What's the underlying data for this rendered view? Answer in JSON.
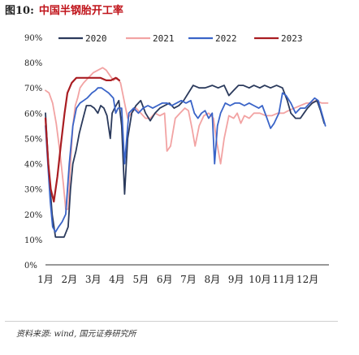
{
  "figure": {
    "label": "图10:",
    "title": "中国半钢胎开工率"
  },
  "source_note": "资料来源: wind, 国元证券研究所",
  "chart_data": {
    "type": "line",
    "title": "中国半钢胎开工率",
    "xlabel": "",
    "ylabel": "",
    "x_range": [
      1,
      12.9
    ],
    "ylim": [
      0,
      90
    ],
    "yticks": [
      "0%",
      "10%",
      "20%",
      "30%",
      "40%",
      "50%",
      "60%",
      "70%",
      "80%",
      "90%"
    ],
    "ytick_values": [
      0,
      10,
      20,
      30,
      40,
      50,
      60,
      70,
      80,
      90
    ],
    "xticks": [
      "1月",
      "2月",
      "3月",
      "4月",
      "5月",
      "6月",
      "7月",
      "8月",
      "9月",
      "10月",
      "11月",
      "12月"
    ],
    "xtick_values": [
      1,
      2,
      3,
      4,
      5,
      6,
      7,
      8,
      9,
      10,
      11,
      12
    ],
    "grid": false,
    "legend_position": "top",
    "series": [
      {
        "name": "2020",
        "color": "#2b3a5c",
        "points": [
          [
            1.0,
            60
          ],
          [
            1.12,
            40
          ],
          [
            1.28,
            20
          ],
          [
            1.42,
            11
          ],
          [
            1.6,
            11
          ],
          [
            1.78,
            11
          ],
          [
            1.95,
            15
          ],
          [
            2.05,
            30
          ],
          [
            2.15,
            40
          ],
          [
            2.28,
            45
          ],
          [
            2.42,
            52
          ],
          [
            2.58,
            58
          ],
          [
            2.72,
            63
          ],
          [
            2.9,
            63
          ],
          [
            3.05,
            62
          ],
          [
            3.2,
            60
          ],
          [
            3.32,
            63
          ],
          [
            3.45,
            62
          ],
          [
            3.58,
            59
          ],
          [
            3.72,
            50
          ],
          [
            3.8,
            60
          ],
          [
            3.9,
            62
          ],
          [
            4.08,
            65
          ],
          [
            4.2,
            55
          ],
          [
            4.32,
            28
          ],
          [
            4.45,
            50
          ],
          [
            4.62,
            60
          ],
          [
            4.8,
            63
          ],
          [
            5.0,
            65
          ],
          [
            5.2,
            60
          ],
          [
            5.4,
            57
          ],
          [
            5.6,
            60
          ],
          [
            5.8,
            62
          ],
          [
            6.0,
            63
          ],
          [
            6.2,
            64
          ],
          [
            6.4,
            62
          ],
          [
            6.6,
            63
          ],
          [
            6.8,
            65
          ],
          [
            7.0,
            68
          ],
          [
            7.2,
            71
          ],
          [
            7.45,
            70
          ],
          [
            7.7,
            70
          ],
          [
            8.0,
            71
          ],
          [
            8.25,
            70
          ],
          [
            8.5,
            71
          ],
          [
            8.7,
            67
          ],
          [
            8.9,
            69
          ],
          [
            9.1,
            71
          ],
          [
            9.3,
            71
          ],
          [
            9.55,
            70
          ],
          [
            9.75,
            71
          ],
          [
            10.0,
            70
          ],
          [
            10.2,
            71
          ],
          [
            10.45,
            70
          ],
          [
            10.7,
            71
          ],
          [
            10.95,
            70
          ],
          [
            11.15,
            65
          ],
          [
            11.3,
            60
          ],
          [
            11.5,
            58
          ],
          [
            11.7,
            58
          ],
          [
            11.85,
            60
          ],
          [
            12.0,
            62
          ],
          [
            12.2,
            64
          ],
          [
            12.4,
            65
          ],
          [
            12.55,
            61
          ],
          [
            12.7,
            56
          ]
        ]
      },
      {
        "name": "2021",
        "color": "#f2a3a3",
        "points": [
          [
            1.0,
            69
          ],
          [
            1.15,
            68
          ],
          [
            1.3,
            64
          ],
          [
            1.45,
            56
          ],
          [
            1.6,
            45
          ],
          [
            1.75,
            32
          ],
          [
            1.85,
            22
          ],
          [
            1.95,
            22
          ],
          [
            2.05,
            40
          ],
          [
            2.15,
            55
          ],
          [
            2.25,
            63
          ],
          [
            2.35,
            66
          ],
          [
            2.45,
            70
          ],
          [
            2.6,
            72
          ],
          [
            2.8,
            74
          ],
          [
            3.0,
            76
          ],
          [
            3.2,
            77
          ],
          [
            3.4,
            78
          ],
          [
            3.55,
            77
          ],
          [
            3.7,
            75
          ],
          [
            3.85,
            73
          ],
          [
            4.0,
            74
          ],
          [
            4.15,
            72
          ],
          [
            4.3,
            65
          ],
          [
            4.45,
            58
          ],
          [
            4.6,
            60
          ],
          [
            4.8,
            62
          ],
          [
            5.0,
            60
          ],
          [
            5.2,
            58
          ],
          [
            5.4,
            58
          ],
          [
            5.6,
            60
          ],
          [
            5.8,
            59
          ],
          [
            6.0,
            60
          ],
          [
            6.1,
            45
          ],
          [
            6.25,
            47
          ],
          [
            6.45,
            58
          ],
          [
            6.65,
            60
          ],
          [
            6.85,
            62
          ],
          [
            7.0,
            61
          ],
          [
            7.15,
            54
          ],
          [
            7.28,
            47
          ],
          [
            7.45,
            55
          ],
          [
            7.65,
            59
          ],
          [
            7.85,
            60
          ],
          [
            8.05,
            58
          ],
          [
            8.2,
            48
          ],
          [
            8.35,
            40
          ],
          [
            8.5,
            50
          ],
          [
            8.7,
            59
          ],
          [
            8.9,
            58
          ],
          [
            9.05,
            60
          ],
          [
            9.2,
            56
          ],
          [
            9.35,
            59
          ],
          [
            9.55,
            58
          ],
          [
            9.75,
            60
          ],
          [
            10.0,
            60
          ],
          [
            10.25,
            59
          ],
          [
            10.5,
            59
          ],
          [
            10.75,
            60
          ],
          [
            11.0,
            60
          ],
          [
            11.2,
            61
          ],
          [
            11.45,
            62
          ],
          [
            11.7,
            63
          ],
          [
            11.95,
            64
          ],
          [
            12.15,
            64
          ],
          [
            12.35,
            65
          ],
          [
            12.6,
            64
          ],
          [
            12.85,
            64
          ]
        ]
      },
      {
        "name": "2022",
        "color": "#3a64c8",
        "points": [
          [
            1.0,
            55
          ],
          [
            1.1,
            40
          ],
          [
            1.2,
            25
          ],
          [
            1.3,
            15
          ],
          [
            1.42,
            13
          ],
          [
            1.55,
            15
          ],
          [
            1.7,
            17
          ],
          [
            1.85,
            20
          ],
          [
            2.0,
            40
          ],
          [
            2.15,
            55
          ],
          [
            2.3,
            62
          ],
          [
            2.45,
            64
          ],
          [
            2.6,
            65
          ],
          [
            2.75,
            66
          ],
          [
            2.95,
            68
          ],
          [
            3.1,
            69
          ],
          [
            3.2,
            70
          ],
          [
            3.35,
            70
          ],
          [
            3.5,
            69
          ],
          [
            3.65,
            68
          ],
          [
            3.85,
            66
          ],
          [
            3.95,
            60
          ],
          [
            4.05,
            62
          ],
          [
            4.2,
            62
          ],
          [
            4.32,
            40
          ],
          [
            4.5,
            60
          ],
          [
            4.7,
            62
          ],
          [
            4.9,
            60
          ],
          [
            5.1,
            62
          ],
          [
            5.3,
            63
          ],
          [
            5.5,
            62
          ],
          [
            5.7,
            63
          ],
          [
            5.9,
            64
          ],
          [
            6.1,
            64
          ],
          [
            6.3,
            63
          ],
          [
            6.5,
            64
          ],
          [
            6.7,
            65
          ],
          [
            6.9,
            64
          ],
          [
            7.1,
            65
          ],
          [
            7.25,
            60
          ],
          [
            7.4,
            58
          ],
          [
            7.55,
            60
          ],
          [
            7.7,
            61
          ],
          [
            7.85,
            58
          ],
          [
            8.0,
            60
          ],
          [
            8.1,
            40
          ],
          [
            8.22,
            55
          ],
          [
            8.35,
            60
          ],
          [
            8.55,
            64
          ],
          [
            8.75,
            63
          ],
          [
            8.95,
            64
          ],
          [
            9.15,
            64
          ],
          [
            9.35,
            63
          ],
          [
            9.55,
            64
          ],
          [
            9.75,
            63
          ],
          [
            9.95,
            62
          ],
          [
            10.1,
            63
          ],
          [
            10.3,
            58
          ],
          [
            10.45,
            54
          ],
          [
            10.6,
            56
          ],
          [
            10.8,
            60
          ],
          [
            10.95,
            68
          ],
          [
            11.1,
            67
          ],
          [
            11.3,
            64
          ],
          [
            11.5,
            60
          ],
          [
            11.7,
            62
          ],
          [
            11.9,
            62
          ],
          [
            12.1,
            64
          ],
          [
            12.3,
            66
          ],
          [
            12.45,
            65
          ],
          [
            12.6,
            60
          ],
          [
            12.75,
            55
          ]
        ]
      },
      {
        "name": "2023",
        "color": "#a91d22",
        "points": [
          [
            1.0,
            58
          ],
          [
            1.12,
            40
          ],
          [
            1.22,
            30
          ],
          [
            1.35,
            25
          ],
          [
            1.5,
            35
          ],
          [
            1.65,
            48
          ],
          [
            1.8,
            60
          ],
          [
            1.92,
            68
          ],
          [
            2.1,
            72
          ],
          [
            2.3,
            74
          ],
          [
            2.55,
            74
          ],
          [
            2.8,
            74
          ],
          [
            3.05,
            74
          ],
          [
            3.3,
            74
          ],
          [
            3.55,
            73
          ],
          [
            3.75,
            73
          ],
          [
            3.95,
            74
          ],
          [
            4.1,
            73
          ]
        ]
      }
    ]
  }
}
